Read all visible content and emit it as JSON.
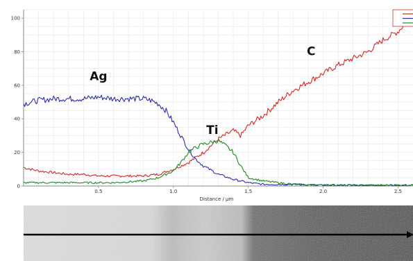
{
  "chart_data": {
    "type": "line",
    "title": "",
    "xlabel": "Distance / µm",
    "ylabel": "",
    "xlim": [
      0,
      2.6
    ],
    "ylim": [
      0,
      105
    ],
    "x_ticks": [
      "0.5",
      "1.0",
      "1.5",
      "2.0",
      "2.5"
    ],
    "y_ticks": [
      "0",
      "20",
      "40",
      "60",
      "80",
      "100"
    ],
    "grid": true,
    "legend": "top-right",
    "series": [
      {
        "color": "#e02020",
        "x": [
          0,
          0.1,
          0.2,
          0.3,
          0.4,
          0.5,
          0.6,
          0.7,
          0.8,
          0.9,
          1.0,
          1.1,
          1.2,
          1.3,
          1.4,
          1.45,
          1.5,
          1.6,
          1.7,
          1.8,
          1.9,
          2.0,
          2.1,
          2.2,
          2.3,
          2.4,
          2.5,
          2.55,
          2.6
        ],
        "y": [
          11,
          9,
          8,
          7,
          7,
          6,
          6,
          6,
          6,
          7,
          10,
          14,
          20,
          28,
          33,
          30,
          36,
          42,
          50,
          57,
          62,
          67,
          72,
          76,
          80,
          87,
          92,
          97,
          99
        ]
      },
      {
        "color": "#2a2ab4",
        "x": [
          0,
          0.1,
          0.2,
          0.3,
          0.4,
          0.5,
          0.6,
          0.7,
          0.8,
          0.85,
          0.9,
          0.95,
          1.0,
          1.05,
          1.1,
          1.15,
          1.2,
          1.3,
          1.4,
          1.5,
          1.6,
          1.8,
          2.0,
          2.2,
          2.4,
          2.6
        ],
        "y": [
          49,
          51,
          52,
          52,
          52,
          53,
          52,
          52,
          52,
          51,
          49,
          45,
          38,
          30,
          22,
          16,
          12,
          7,
          4,
          2,
          1,
          1,
          0.5,
          0.5,
          0.5,
          0.5
        ]
      },
      {
        "color": "#1a8a1a",
        "x": [
          0,
          0.2,
          0.4,
          0.6,
          0.8,
          0.9,
          1.0,
          1.05,
          1.1,
          1.15,
          1.2,
          1.25,
          1.3,
          1.35,
          1.4,
          1.45,
          1.5,
          1.6,
          1.7,
          1.8,
          2.0,
          2.2,
          2.4,
          2.6
        ],
        "y": [
          2,
          2,
          2,
          2,
          3,
          5,
          9,
          14,
          20,
          23,
          25,
          26,
          27,
          24,
          20,
          12,
          5,
          3,
          2,
          1,
          0.5,
          0.5,
          0.5,
          0.5
        ]
      }
    ],
    "annotations": [
      {
        "text": "Ag",
        "x": 0.5,
        "y": 63
      },
      {
        "text": "Ti",
        "x": 1.26,
        "y": 31
      },
      {
        "text": "C",
        "x": 1.92,
        "y": 78
      }
    ]
  },
  "colors": {
    "grid": "#e6e6e6",
    "axis": "#888888",
    "image_light": "#dcdcdc",
    "image_dark": "#4a4a4a",
    "arrow": "#000000"
  }
}
